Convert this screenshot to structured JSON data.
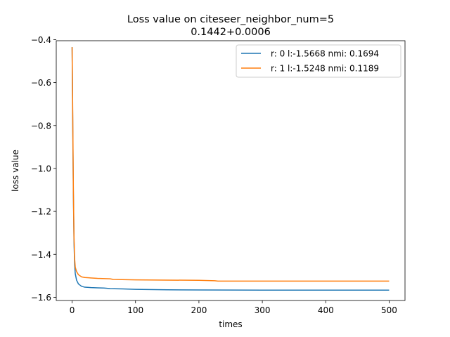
{
  "chart_data": {
    "type": "line",
    "title": "Loss value on citeseer_neighbor_num=5",
    "subtitle": "0.1442+0.0006",
    "xlabel": "times",
    "ylabel": "loss value",
    "xlim": [
      -25,
      525
    ],
    "ylim": [
      -1.615,
      -0.405
    ],
    "xticks": [
      0,
      100,
      200,
      300,
      400,
      500
    ],
    "xtick_labels": [
      "0",
      "100",
      "200",
      "300",
      "400",
      "500"
    ],
    "yticks": [
      -1.6,
      -1.4,
      -1.2,
      -1.0,
      -0.8,
      -0.6,
      -0.4
    ],
    "ytick_labels": [
      "−1.6",
      "−1.4",
      "−1.2",
      "−1.0",
      "−0.8",
      "−0.6",
      "−0.4"
    ],
    "grid": false,
    "legend_position": "top-right",
    "series": [
      {
        "name": "r: 0 l:-1.5668 nmi: 0.1694",
        "color": "#1f77b4",
        "x": [
          0,
          1,
          2,
          3,
          4,
          5,
          7,
          10,
          15,
          20,
          30,
          40,
          50,
          55,
          60,
          80,
          100,
          150,
          200,
          300,
          400,
          500
        ],
        "y": [
          -0.435,
          -0.8,
          -1.12,
          -1.34,
          -1.45,
          -1.49,
          -1.52,
          -1.538,
          -1.549,
          -1.553,
          -1.555,
          -1.556,
          -1.557,
          -1.558,
          -1.56,
          -1.561,
          -1.563,
          -1.565,
          -1.566,
          -1.5668,
          -1.5668,
          -1.5668
        ]
      },
      {
        "name": "r: 1 l:-1.5248 nmi: 0.1189",
        "color": "#ff7f0e",
        "x": [
          0,
          1,
          2,
          3,
          4,
          5,
          7,
          10,
          15,
          20,
          40,
          60,
          65,
          100,
          150,
          200,
          225,
          230,
          300,
          400,
          500
        ],
        "y": [
          -0.435,
          -0.75,
          -1.1,
          -1.32,
          -1.42,
          -1.46,
          -1.48,
          -1.495,
          -1.505,
          -1.508,
          -1.512,
          -1.514,
          -1.517,
          -1.519,
          -1.52,
          -1.521,
          -1.523,
          -1.5248,
          -1.5248,
          -1.5248,
          -1.5248
        ]
      }
    ]
  }
}
